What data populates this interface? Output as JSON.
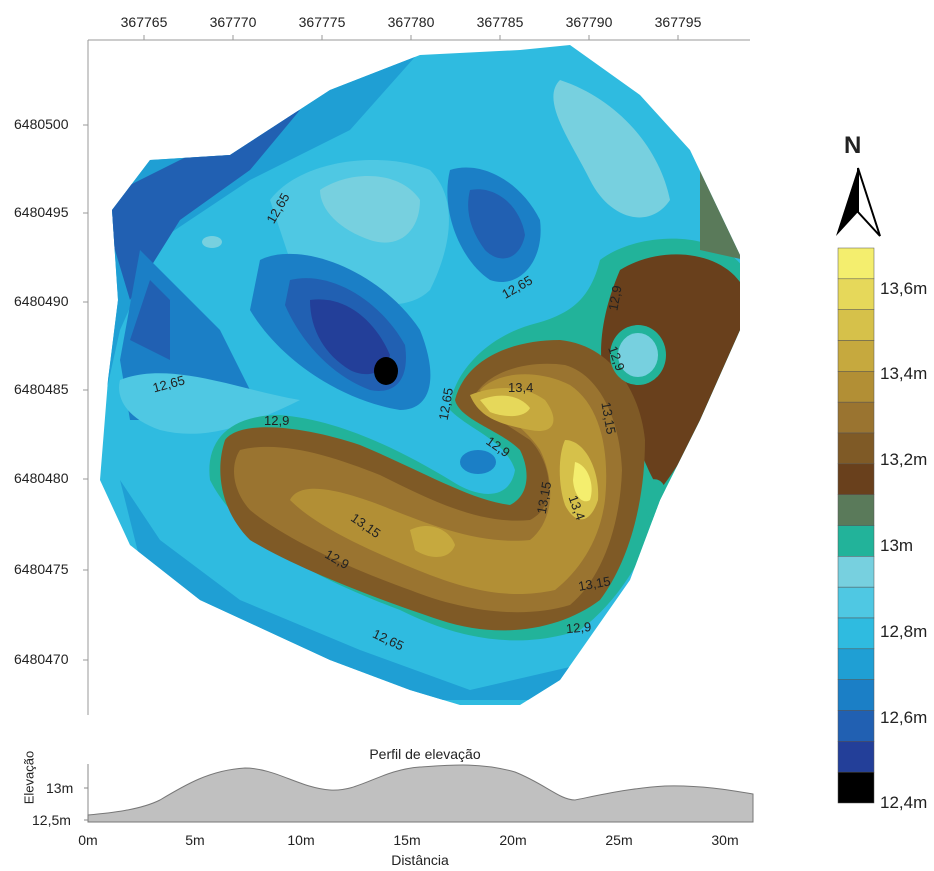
{
  "map": {
    "x_ticks": [
      "367765",
      "367770",
      "367775",
      "367780",
      "367785",
      "367790",
      "367795"
    ],
    "y_ticks": [
      "6480500",
      "6480495",
      "6480490",
      "6480485",
      "6480480",
      "6480475",
      "6480470"
    ],
    "contour_labels": [
      "12,65",
      "12,65",
      "12,65",
      "12,65",
      "12,65",
      "12,9",
      "12,9",
      "12,9",
      "12,9",
      "12,9",
      "12,9",
      "13,4",
      "13,4",
      "13,15",
      "13,15",
      "13,15",
      "13,15"
    ]
  },
  "north_arrow": {
    "label": "N"
  },
  "legend": {
    "labels": [
      "13,6m",
      "13,4m",
      "13,2m",
      "13m",
      "12,8m",
      "12,6m",
      "12,4m"
    ],
    "colors": [
      "#f4ee6e",
      "#e6d85a",
      "#d6c14a",
      "#c6a93e",
      "#b28f35",
      "#9a7430",
      "#7f5a26",
      "#69401c",
      "#5a7a5a",
      "#22b39a",
      "#77d0df",
      "#4fc8e3",
      "#2fbbe0",
      "#1f9fd4",
      "#1b7fc6",
      "#2160b2",
      "#233f99",
      "#000000"
    ]
  },
  "profile": {
    "title": "Perfil de elevação",
    "ylabel": "Elevação",
    "xlabel": "Distância",
    "y_ticks": [
      "13m",
      "12,5m"
    ],
    "x_ticks": [
      "0m",
      "5m",
      "10m",
      "15m",
      "20m",
      "25m",
      "30m"
    ]
  }
}
